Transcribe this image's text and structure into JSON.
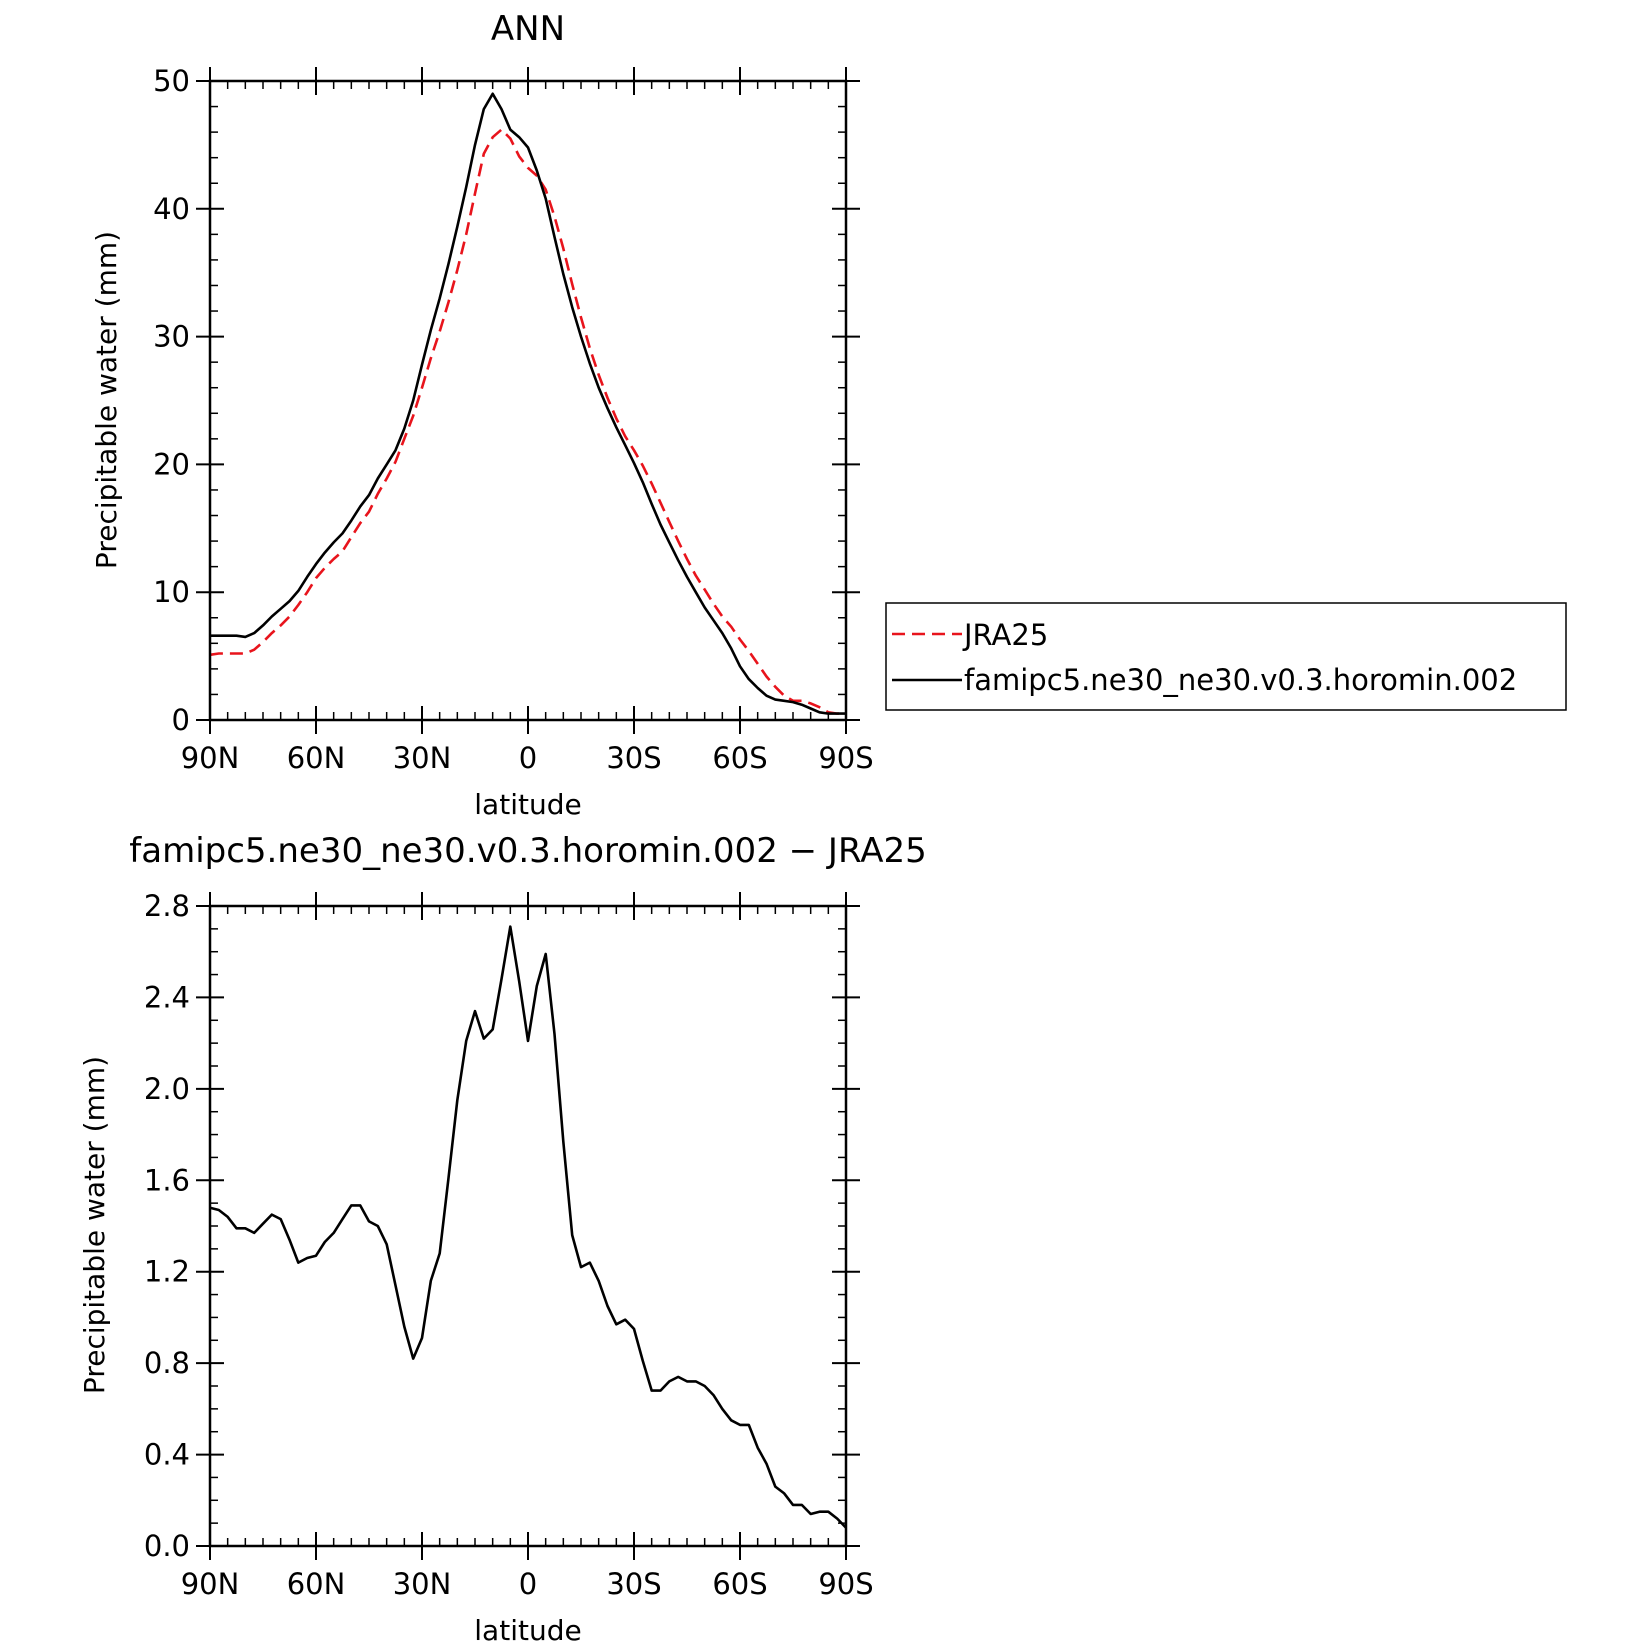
{
  "chart_data": [
    {
      "type": "line",
      "title": "ANN",
      "xlabel": "latitude",
      "ylabel": "Precipitable water (mm)",
      "xlim": [
        90,
        -90
      ],
      "ylim": [
        0,
        50
      ],
      "x_ticks": [
        90,
        60,
        30,
        0,
        -30,
        -60,
        -90
      ],
      "x_tick_labels": [
        "90N",
        "60N",
        "30N",
        "0",
        "30S",
        "60S",
        "90S"
      ],
      "y_ticks": [
        0,
        10,
        20,
        30,
        40,
        50
      ],
      "y_tick_labels": [
        "0",
        "10",
        "20",
        "30",
        "40",
        "50"
      ],
      "grid": false,
      "legend": {
        "placement": "right, outside"
      },
      "series": [
        {
          "name": "JRA25",
          "color": "#e8141c",
          "dash": "dashed",
          "x": [
            90,
            87.5,
            85,
            82.5,
            80,
            77.5,
            75,
            72.5,
            70,
            67.5,
            65,
            62.5,
            60,
            57.5,
            55,
            52.5,
            50,
            47.5,
            45,
            42.5,
            40,
            37.5,
            35,
            32.5,
            30,
            27.5,
            25,
            22.5,
            20,
            17.5,
            15,
            12.5,
            10,
            7.5,
            5,
            2.5,
            0,
            -2.5,
            -5,
            -7.5,
            -10,
            -12.5,
            -15,
            -17.5,
            -20,
            -22.5,
            -25,
            -27.5,
            -30,
            -32.5,
            -35,
            -37.5,
            -40,
            -42.5,
            -45,
            -47.5,
            -50,
            -52.5,
            -55,
            -57.5,
            -60,
            -62.5,
            -65,
            -67.5,
            -70,
            -72.5,
            -75,
            -77.5,
            -80,
            -82.5,
            -85,
            -87.5,
            -90
          ],
          "y": [
            5.1,
            5.2,
            5.2,
            5.2,
            5.2,
            5.5,
            6.1,
            6.8,
            7.4,
            8.1,
            9.0,
            10.0,
            11.1,
            11.9,
            12.6,
            13.2,
            14.3,
            15.4,
            16.3,
            17.7,
            18.9,
            20.2,
            22.0,
            23.8,
            26.0,
            28.3,
            30.4,
            32.7,
            35.2,
            38.0,
            41.2,
            44.3,
            45.6,
            46.2,
            45.5,
            44.1,
            43.2,
            42.6,
            41.5,
            39.4,
            36.9,
            34.1,
            31.5,
            29.1,
            27.0,
            25.2,
            23.6,
            22.2,
            21.1,
            19.9,
            18.5,
            17.0,
            15.5,
            14.0,
            12.6,
            11.3,
            10.2,
            9.1,
            8.1,
            7.3,
            6.3,
            5.4,
            4.4,
            3.4,
            2.6,
            1.9,
            1.5,
            1.5,
            1.3,
            1.0,
            0.6,
            0.5,
            0.5
          ]
        },
        {
          "name": "famipc5.ne30_ne30.v0.3.horomin.002",
          "color": "#000000",
          "dash": "solid",
          "x": [
            90,
            87.5,
            85,
            82.5,
            80,
            77.5,
            75,
            72.5,
            70,
            67.5,
            65,
            62.5,
            60,
            57.5,
            55,
            52.5,
            50,
            47.5,
            45,
            42.5,
            40,
            37.5,
            35,
            32.5,
            30,
            27.5,
            25,
            22.5,
            20,
            17.5,
            15,
            12.5,
            10,
            7.5,
            5,
            2.5,
            0,
            -2.5,
            -5,
            -7.5,
            -10,
            -12.5,
            -15,
            -17.5,
            -20,
            -22.5,
            -25,
            -27.5,
            -30,
            -32.5,
            -35,
            -37.5,
            -40,
            -42.5,
            -45,
            -47.5,
            -50,
            -52.5,
            -55,
            -57.5,
            -60,
            -62.5,
            -65,
            -67.5,
            -70,
            -72.5,
            -75,
            -77.5,
            -80,
            -82.5,
            -85,
            -87.5,
            -90
          ],
          "y": [
            6.6,
            6.6,
            6.6,
            6.6,
            6.5,
            6.8,
            7.4,
            8.1,
            8.7,
            9.3,
            10.1,
            11.2,
            12.2,
            13.1,
            13.9,
            14.6,
            15.6,
            16.7,
            17.6,
            18.9,
            20.0,
            21.1,
            22.8,
            25.0,
            27.8,
            30.5,
            33.0,
            35.7,
            38.6,
            41.7,
            45.0,
            47.8,
            49.0,
            47.8,
            46.2,
            45.6,
            44.8,
            43.0,
            40.8,
            37.8,
            34.9,
            32.3,
            30.0,
            27.9,
            26.0,
            24.4,
            22.9,
            21.5,
            20.1,
            18.6,
            16.9,
            15.3,
            13.9,
            12.5,
            11.2,
            10.0,
            8.8,
            7.8,
            6.8,
            5.6,
            4.2,
            3.2,
            2.5,
            1.9,
            1.6,
            1.5,
            1.4,
            1.2,
            0.9,
            0.6,
            0.5,
            0.5,
            0.5
          ]
        }
      ]
    },
    {
      "type": "line",
      "title": "famipc5.ne30_ne30.v0.3.horomin.002 − JRA25",
      "xlabel": "latitude",
      "ylabel": "Precipitable water (mm)",
      "xlim": [
        90,
        -90
      ],
      "ylim": [
        0,
        2.8
      ],
      "x_ticks": [
        90,
        60,
        30,
        0,
        -30,
        -60,
        -90
      ],
      "x_tick_labels": [
        "90N",
        "60N",
        "30N",
        "0",
        "30S",
        "60S",
        "90S"
      ],
      "y_ticks": [
        0,
        0.4,
        0.8,
        1.2,
        1.6,
        2.0,
        2.4,
        2.8
      ],
      "y_tick_labels": [
        "0.0",
        "0.4",
        "0.8",
        "1.2",
        "1.6",
        "2.0",
        "2.4",
        "2.8"
      ],
      "grid": false,
      "series": [
        {
          "color": "#000000",
          "dash": "solid",
          "x": [
            90,
            87.5,
            85,
            82.5,
            80,
            77.5,
            75,
            72.5,
            70,
            67.5,
            65,
            62.5,
            60,
            57.5,
            55,
            52.5,
            50,
            47.5,
            45,
            42.5,
            40,
            37.5,
            35,
            32.5,
            30,
            27.5,
            25,
            22.5,
            20,
            17.5,
            15,
            12.5,
            10,
            7.5,
            5,
            2.5,
            0,
            -2.5,
            -5,
            -7.5,
            -10,
            -12.5,
            -15,
            -17.5,
            -20,
            -22.5,
            -25,
            -27.5,
            -30,
            -32.5,
            -35,
            -37.5,
            -40,
            -42.5,
            -45,
            -47.5,
            -50,
            -52.5,
            -55,
            -57.5,
            -60,
            -62.5,
            -65,
            -67.5,
            -70,
            -72.5,
            -75,
            -77.5,
            -80,
            -82.5,
            -85,
            -87.5,
            -90
          ],
          "y": [
            1.48,
            1.47,
            1.44,
            1.39,
            1.39,
            1.37,
            1.41,
            1.45,
            1.43,
            1.34,
            1.24,
            1.26,
            1.27,
            1.33,
            1.37,
            1.43,
            1.49,
            1.49,
            1.42,
            1.4,
            1.32,
            1.14,
            0.96,
            0.82,
            0.91,
            1.16,
            1.28,
            1.61,
            1.95,
            2.21,
            2.34,
            2.22,
            2.26,
            2.48,
            2.71,
            2.47,
            2.21,
            2.45,
            2.59,
            2.24,
            1.77,
            1.36,
            1.22,
            1.24,
            1.16,
            1.05,
            0.97,
            0.99,
            0.95,
            0.81,
            0.68,
            0.68,
            0.72,
            0.74,
            0.72,
            0.72,
            0.7,
            0.66,
            0.6,
            0.55,
            0.53,
            0.53,
            0.43,
            0.36,
            0.26,
            0.23,
            0.18,
            0.18,
            0.14,
            0.15,
            0.15,
            0.12,
            0.08
          ]
        }
      ]
    }
  ]
}
